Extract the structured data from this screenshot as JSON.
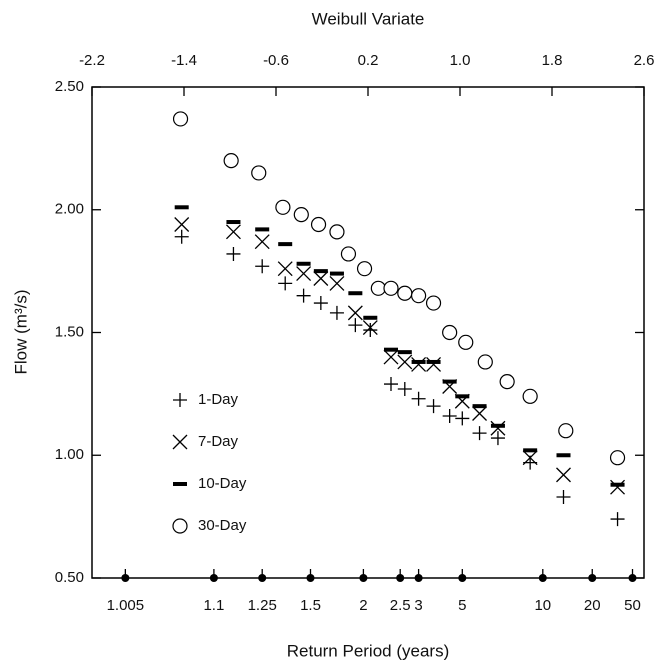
{
  "chart_data": {
    "type": "scatter",
    "x_top_label": "Weibull Variate",
    "x_label": "Return Period (years)",
    "y_label": "Flow (m³/s)",
    "xlim": [
      -2.2,
      2.6
    ],
    "xticks": [
      -2.2,
      -1.4,
      -0.6,
      0.2,
      {
        "value": 1,
        "label": "1.0"
      },
      1.8,
      2.6
    ],
    "bottom_ticks": [
      {
        "value": -1.91,
        "label": "1.005"
      },
      {
        "value": -1.14,
        "label": "1.1"
      },
      {
        "value": -0.72,
        "label": "1.25"
      },
      {
        "value": -0.3,
        "label": "1.5"
      },
      {
        "value": 0.16,
        "label": "2"
      },
      {
        "value": 0.48,
        "label": "2.5"
      },
      {
        "value": 0.64,
        "label": "3"
      },
      {
        "value": 1.02,
        "label": "5"
      },
      {
        "value": 1.72,
        "label": "10"
      },
      {
        "value": 2.15,
        "label": "20"
      },
      {
        "value": 2.5,
        "label": "50"
      }
    ],
    "ylim": [
      0.5,
      2.5
    ],
    "yticks": [
      {
        "value": 0.5,
        "label": "0.50"
      },
      {
        "value": 1,
        "label": "1.00"
      },
      {
        "value": 1.5,
        "label": "1.50"
      },
      {
        "value": 2,
        "label": "2.00"
      },
      {
        "value": 2.5,
        "label": "2.50"
      }
    ],
    "legend": "lower-left",
    "series": [
      {
        "name": "1-Day",
        "marker": "plus",
        "color": "#000000",
        "x": [
          -1.42,
          -0.97,
          -0.72,
          -0.52,
          -0.36,
          -0.21,
          -0.07,
          0.09,
          0.22,
          0.4,
          0.52,
          0.64,
          0.77,
          0.91,
          1.02,
          1.17,
          1.33,
          1.61,
          1.9,
          2.37
        ],
        "values": [
          1.89,
          1.82,
          1.77,
          1.7,
          1.65,
          1.62,
          1.58,
          1.53,
          1.51,
          1.29,
          1.27,
          1.23,
          1.2,
          1.16,
          1.15,
          1.09,
          1.07,
          0.97,
          0.83,
          0.74
        ]
      },
      {
        "name": "7-Day",
        "marker": "x",
        "color": "#000000",
        "x": [
          -1.42,
          -0.97,
          -0.72,
          -0.52,
          -0.36,
          -0.21,
          -0.07,
          0.09,
          0.22,
          0.4,
          0.52,
          0.64,
          0.77,
          0.91,
          1.02,
          1.17,
          1.33,
          1.61,
          1.9,
          2.37
        ],
        "values": [
          1.94,
          1.91,
          1.87,
          1.76,
          1.74,
          1.72,
          1.7,
          1.58,
          1.52,
          1.4,
          1.38,
          1.37,
          1.37,
          1.28,
          1.22,
          1.17,
          1.11,
          0.99,
          0.92,
          0.87
        ]
      },
      {
        "name": "10-Day",
        "marker": "dash",
        "color": "#000000",
        "x": [
          -1.42,
          -0.97,
          -0.72,
          -0.52,
          -0.36,
          -0.21,
          -0.07,
          0.09,
          0.22,
          0.4,
          0.52,
          0.64,
          0.77,
          0.91,
          1.02,
          1.17,
          1.33,
          1.61,
          1.9,
          2.37
        ],
        "values": [
          2.01,
          1.95,
          1.92,
          1.86,
          1.78,
          1.75,
          1.74,
          1.66,
          1.56,
          1.43,
          1.42,
          1.38,
          1.38,
          1.3,
          1.24,
          1.2,
          1.12,
          1.02,
          1.0,
          0.88
        ]
      },
      {
        "name": "30-Day",
        "marker": "circle",
        "color": "#000000",
        "x": [
          -1.43,
          -0.99,
          -0.75,
          -0.54,
          -0.38,
          -0.23,
          -0.07,
          0.03,
          0.17,
          0.29,
          0.4,
          0.52,
          0.64,
          0.77,
          0.91,
          1.05,
          1.22,
          1.41,
          1.61,
          1.92,
          2.37
        ],
        "values": [
          2.37,
          2.2,
          2.15,
          2.01,
          1.98,
          1.94,
          1.91,
          1.82,
          1.76,
          1.68,
          1.68,
          1.66,
          1.65,
          1.62,
          1.5,
          1.46,
          1.38,
          1.3,
          1.24,
          1.1,
          0.99
        ]
      }
    ]
  }
}
